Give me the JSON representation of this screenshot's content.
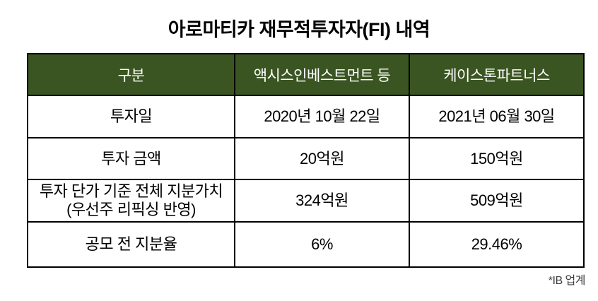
{
  "title": "아로마티카 재무적투자자(FI) 내역",
  "footnote": "*IB 업계",
  "colors": {
    "header_background": "#3A5422",
    "header_text": "#FFFFFF",
    "border": "#000000",
    "body_text": "#000000",
    "page_background": "#FFFFFF"
  },
  "chart_data": {
    "type": "table",
    "title": "아로마티카 재무적투자자(FI) 내역",
    "columns": [
      "구분",
      "액시스인베스트먼트 등",
      "케이스톤파트너스"
    ],
    "rows": [
      [
        "투자일",
        "2020년 10월 22일",
        "2021년 06월 30일"
      ],
      [
        "투자 금액",
        "20억원",
        "150억원"
      ],
      [
        "투자 단가 기준 전체 지분가치\n(우선주 리픽싱 반영)",
        "324억원",
        "509억원"
      ],
      [
        "공모 전 지분율",
        "6%",
        "29.46%"
      ]
    ],
    "source_note": "*IB 업계",
    "layout": {
      "header_style": "dark-green band, white text",
      "grid": "all cells black-bordered",
      "alignment": "all cells centered"
    }
  }
}
